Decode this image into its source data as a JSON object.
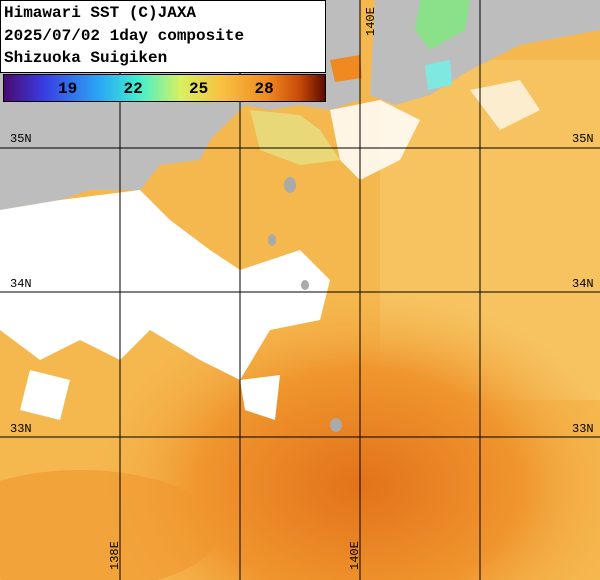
{
  "header": {
    "lines": [
      "Himawari SST (C)JAXA",
      "2025/07/02 1day composite",
      "Shizuoka Suigiken"
    ]
  },
  "colorbar": {
    "ticks": [
      "19",
      "22",
      "25",
      "28"
    ]
  },
  "map": {
    "lat_labels": [
      "35N",
      "34N",
      "33N"
    ],
    "lon_labels_bottom": [
      "138E",
      "140E"
    ],
    "lon_label_top": "140E"
  }
}
